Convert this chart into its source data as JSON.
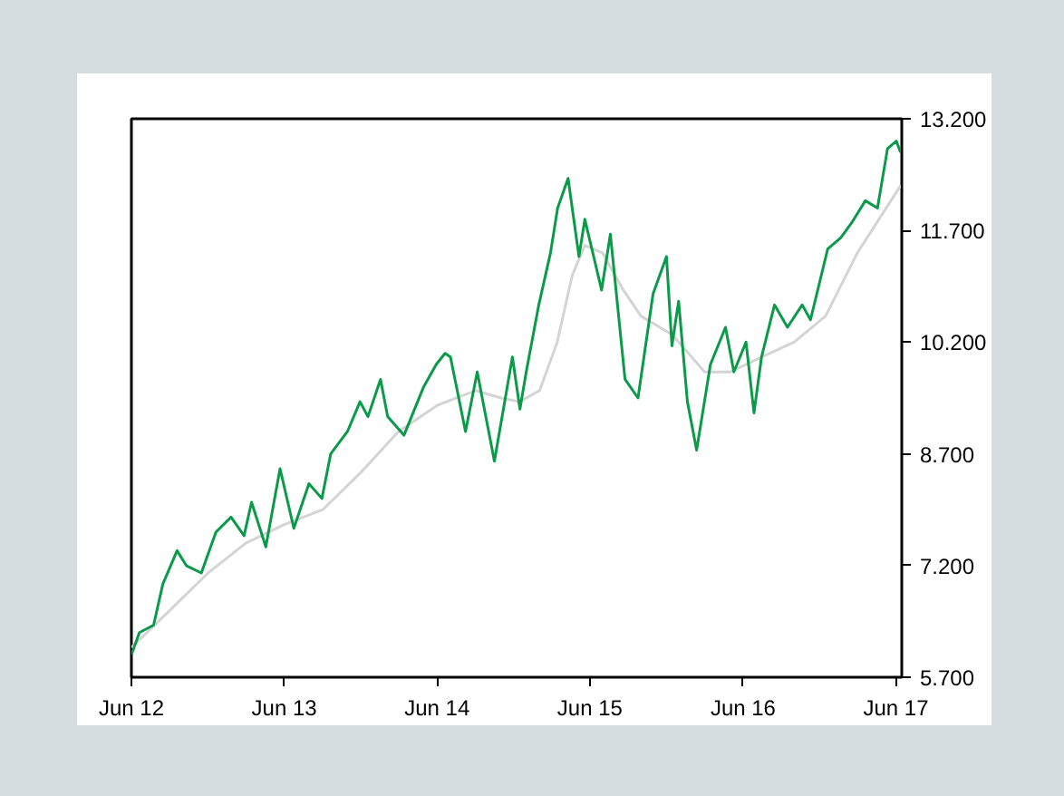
{
  "chart_data": {
    "type": "line",
    "xlim": [
      "2012-06-01",
      "2017-06-15"
    ],
    "ylim": [
      5700,
      13200
    ],
    "xticks": [
      {
        "value": "2012-06-01",
        "label": "Jun 12"
      },
      {
        "value": "2013-06-01",
        "label": "Jun 13"
      },
      {
        "value": "2014-06-01",
        "label": "Jun 14"
      },
      {
        "value": "2015-06-01",
        "label": "Jun 15"
      },
      {
        "value": "2016-06-01",
        "label": "Jun 16"
      },
      {
        "value": "2017-06-01",
        "label": "Jun 17"
      }
    ],
    "yticks": [
      {
        "value": 5700,
        "label": "5.700"
      },
      {
        "value": 7200,
        "label": "7.200"
      },
      {
        "value": 8700,
        "label": "8.700"
      },
      {
        "value": 10200,
        "label": "10.200"
      },
      {
        "value": 11700,
        "label": "11.700"
      },
      {
        "value": 13200,
        "label": "13.200"
      }
    ],
    "series": [
      {
        "color": "#d4d4d4",
        "x": [
          "2012-06-01",
          "2012-09-01",
          "2012-12-01",
          "2013-03-01",
          "2013-06-01",
          "2013-09-01",
          "2013-12-01",
          "2014-03-01",
          "2014-06-01",
          "2014-09-01",
          "2014-11-01",
          "2014-12-15",
          "2015-02-01",
          "2015-03-15",
          "2015-04-20",
          "2015-05-20",
          "2015-07-01",
          "2015-08-20",
          "2015-10-01",
          "2015-12-15",
          "2016-03-01",
          "2016-05-01",
          "2016-07-15",
          "2016-10-01",
          "2016-12-15",
          "2017-03-01",
          "2017-06-12"
        ],
        "values": [
          6100,
          6600,
          7100,
          7500,
          7750,
          7950,
          8450,
          9000,
          9350,
          9550,
          9450,
          9400,
          9550,
          10200,
          11100,
          11500,
          11400,
          10900,
          10550,
          10300,
          9800,
          9800,
          10000,
          10200,
          10550,
          11400,
          12300
        ]
      },
      {
        "color": "#0a9a4a",
        "x": [
          "2012-06-01",
          "2012-06-20",
          "2012-07-24",
          "2012-08-15",
          "2012-09-18",
          "2012-10-10",
          "2012-11-15",
          "2012-12-20",
          "2013-01-25",
          "2013-02-25",
          "2013-03-15",
          "2013-04-18",
          "2013-05-22",
          "2013-06-24",
          "2013-07-30",
          "2013-08-30",
          "2013-09-20",
          "2013-10-30",
          "2013-11-29",
          "2013-12-18",
          "2014-01-17",
          "2014-02-03",
          "2014-03-14",
          "2014-04-30",
          "2014-05-30",
          "2014-06-20",
          "2014-07-03",
          "2014-08-08",
          "2014-09-05",
          "2014-10-16",
          "2014-11-28",
          "2014-12-16",
          "2014-12-31",
          "2015-01-30",
          "2015-02-27",
          "2015-03-16",
          "2015-04-10",
          "2015-05-06",
          "2015-05-20",
          "2015-06-29",
          "2015-07-20",
          "2015-08-24",
          "2015-09-24",
          "2015-10-30",
          "2015-12-01",
          "2015-12-14",
          "2015-12-30",
          "2016-01-20",
          "2016-02-11",
          "2016-03-15",
          "2016-04-20",
          "2016-05-10",
          "2016-06-08",
          "2016-06-27",
          "2016-07-15",
          "2016-08-15",
          "2016-09-15",
          "2016-10-20",
          "2016-11-09",
          "2016-12-20",
          "2017-01-20",
          "2017-02-15",
          "2017-03-20",
          "2017-04-18",
          "2017-05-12",
          "2017-06-02",
          "2017-06-12"
        ],
        "values": [
          6000,
          6300,
          6400,
          6950,
          7400,
          7200,
          7100,
          7650,
          7850,
          7600,
          8050,
          7450,
          8500,
          7700,
          8300,
          8100,
          8700,
          9000,
          9400,
          9200,
          9700,
          9200,
          8950,
          9600,
          9900,
          10050,
          10000,
          9000,
          9800,
          8600,
          10000,
          9300,
          9800,
          10700,
          11400,
          12000,
          12400,
          11350,
          11850,
          10900,
          11650,
          9700,
          9450,
          10850,
          11350,
          10150,
          10750,
          9400,
          8750,
          9900,
          10400,
          9800,
          10200,
          9250,
          10000,
          10700,
          10400,
          10700,
          10500,
          11450,
          11600,
          11800,
          12100,
          12000,
          12800,
          12900,
          12750
        ]
      }
    ]
  }
}
